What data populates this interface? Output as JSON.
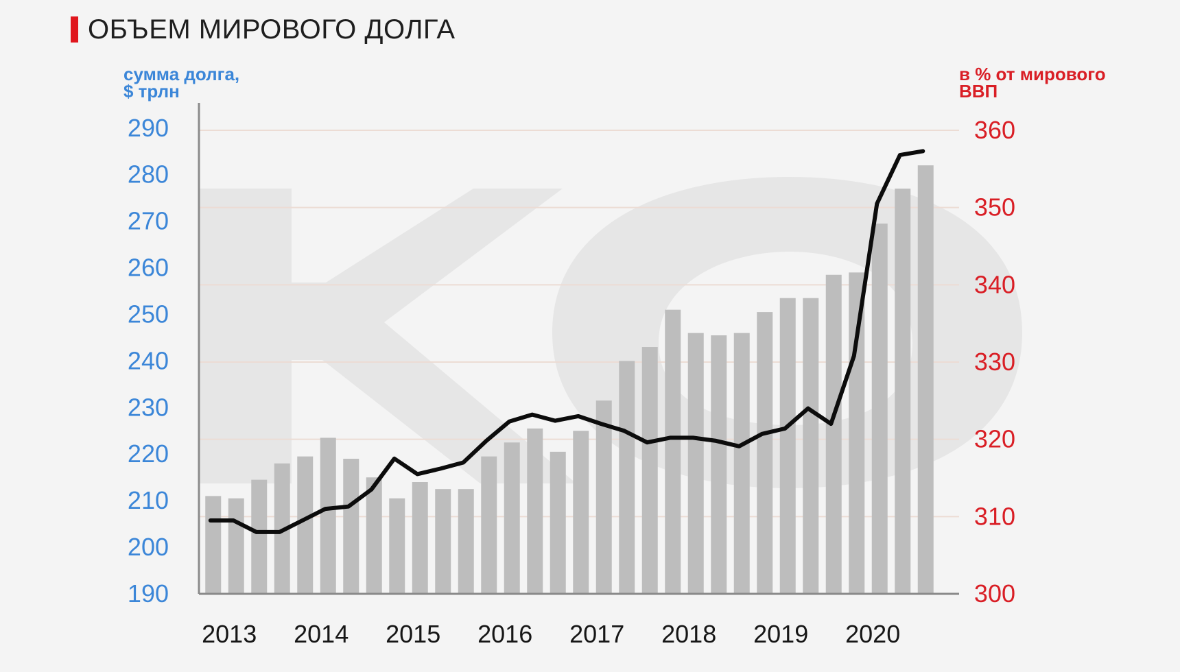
{
  "title": "ОБЪЕМ МИРОВОГО ДОЛГА",
  "colors": {
    "accent": "#e0161d",
    "left_axis": "#3b86d8",
    "right_axis": "#d91e25",
    "bars": "#bdbdbd",
    "line": "#0c0c0c",
    "watermark": "#e6e6e6"
  },
  "chart_data": {
    "type": "bar",
    "title": "ОБЪЕМ МИРОВОГО ДОЛГА",
    "y_left_label_line1": "сумма долга,",
    "y_left_label_line2": "$ трлн",
    "y_right_label_line1": "в % от мирового",
    "y_right_label_line2": "ВВП",
    "y_left_ticks": [
      "190",
      "200",
      "210",
      "220",
      "230",
      "240",
      "250",
      "260",
      "270",
      "280",
      "290"
    ],
    "y_right_ticks": [
      "300",
      "310",
      "320",
      "330",
      "340",
      "350",
      "360"
    ],
    "x_ticks": [
      "2013",
      "2014",
      "2015",
      "2016",
      "2017",
      "2018",
      "2019",
      "2020"
    ],
    "ylim_left": [
      190,
      291
    ],
    "ylim_right": [
      300,
      360
    ],
    "grid": true,
    "legend": "none",
    "quarters": [
      "2013 Q1",
      "2013 Q2",
      "2013 Q3",
      "2013 Q4",
      "2014 Q1",
      "2014 Q2",
      "2014 Q3",
      "2014 Q4",
      "2015 Q1",
      "2015 Q2",
      "2015 Q3",
      "2015 Q4",
      "2016 Q1",
      "2016 Q2",
      "2016 Q3",
      "2016 Q4",
      "2017 Q1",
      "2017 Q2",
      "2017 Q3",
      "2017 Q4",
      "2018 Q1",
      "2018 Q2",
      "2018 Q3",
      "2018 Q4",
      "2019 Q1",
      "2019 Q2",
      "2019 Q3",
      "2019 Q4",
      "2020 Q1",
      "2020 Q2",
      "2020 Q3",
      "2020 Q4"
    ],
    "series": [
      {
        "name": "сумма долга, $ трлн",
        "type": "bar",
        "axis": "left",
        "values": [
          211,
          210.5,
          214.5,
          218,
          219.5,
          223.5,
          219,
          215,
          210.5,
          214,
          212.5,
          212.5,
          219.5,
          222.5,
          225.5,
          220.5,
          225,
          231.5,
          240,
          243,
          251,
          246,
          245.5,
          246,
          250.5,
          253.5,
          253.5,
          258.5,
          259,
          269.5,
          277,
          282
        ]
      },
      {
        "name": "в % от мирового ВВП",
        "type": "line",
        "axis": "right",
        "values": [
          309.5,
          309.5,
          308,
          308,
          309.5,
          311,
          311.3,
          313.5,
          317.5,
          315.5,
          316.2,
          317,
          319.8,
          322.3,
          323.2,
          322.4,
          323,
          322,
          321.1,
          319.6,
          320.2,
          320.2,
          319.8,
          319.1,
          320.7,
          321.4,
          324,
          322,
          330.8,
          350.5,
          356.8,
          357.3
        ]
      }
    ]
  }
}
